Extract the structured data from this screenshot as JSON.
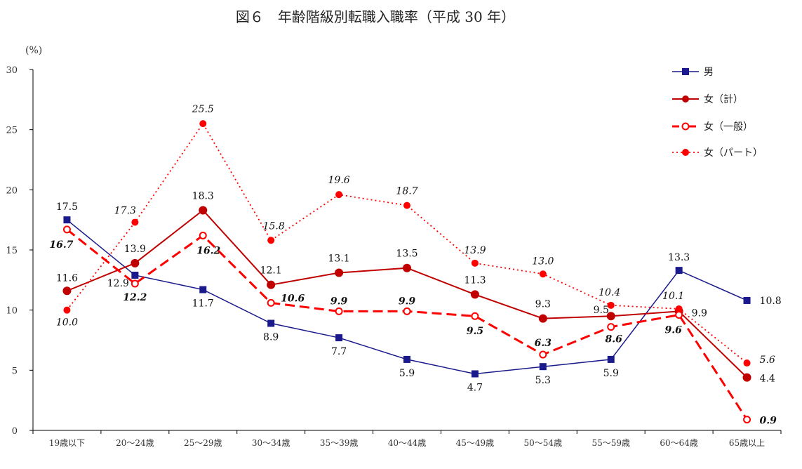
{
  "chart_data": {
    "type": "line",
    "title": "図６　年齢階級別転職入職率（平成 30 年）",
    "ylabel": "(%)",
    "xlabel": "",
    "ylim": [
      0,
      30
    ],
    "yticks": [
      0,
      5,
      10,
      15,
      20,
      25,
      30
    ],
    "grid": false,
    "legend_position": "top-right",
    "categories": [
      "19歳以下",
      "20～24歳",
      "25～29歳",
      "30～34歳",
      "35～39歳",
      "40～44歳",
      "45～49歳",
      "50～54歳",
      "55～59歳",
      "60～64歳",
      "65歳以上"
    ],
    "series": [
      {
        "name": "男",
        "color": "#1a1a8c",
        "style": "solid-square",
        "values": [
          17.5,
          12.9,
          11.7,
          8.9,
          7.7,
          5.9,
          4.7,
          5.3,
          5.9,
          13.3,
          10.8
        ]
      },
      {
        "name": "女（計）",
        "color": "#c00000",
        "style": "solid-circle",
        "values": [
          11.6,
          13.9,
          18.3,
          12.1,
          13.1,
          13.5,
          11.3,
          9.3,
          9.5,
          9.9,
          4.4
        ]
      },
      {
        "name": "女（一般）",
        "color": "#ff0000",
        "style": "dashed-open-circle",
        "values": [
          16.7,
          12.2,
          16.2,
          10.6,
          9.9,
          9.9,
          9.5,
          6.3,
          8.6,
          9.6,
          0.9
        ]
      },
      {
        "name": "女（パート）",
        "color": "#ff0000",
        "style": "dotted-circle",
        "values": [
          10.0,
          17.3,
          25.5,
          15.8,
          19.6,
          18.7,
          13.9,
          13.0,
          10.4,
          10.1,
          5.6
        ]
      }
    ]
  }
}
